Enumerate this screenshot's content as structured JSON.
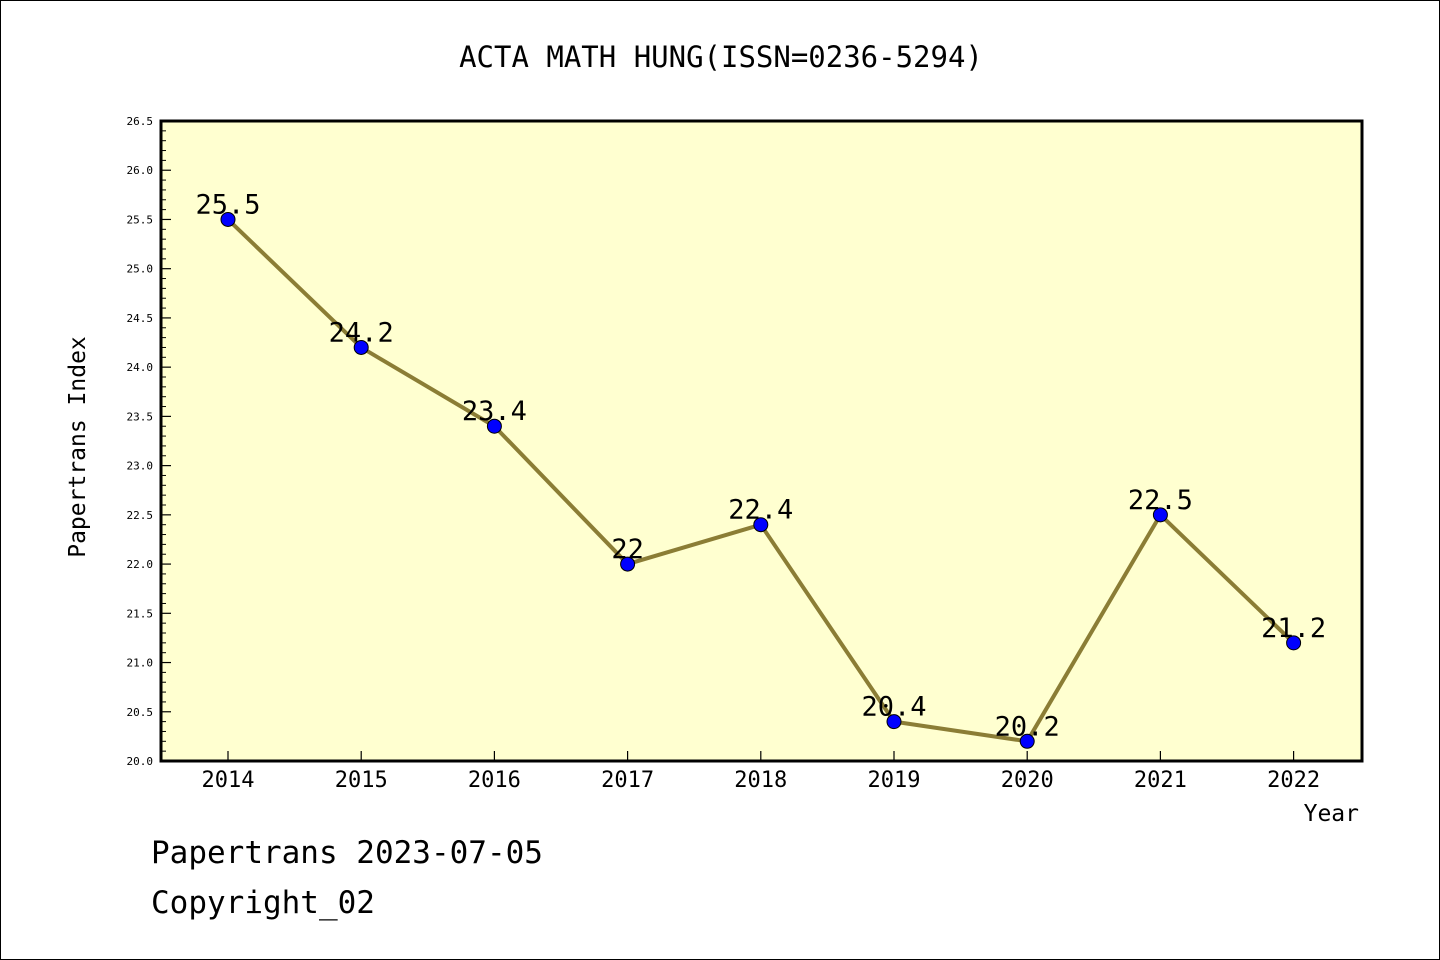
{
  "chart_data": {
    "type": "line",
    "title": "ACTA MATH HUNG(ISSN=0236-5294)",
    "xlabel": "Year",
    "ylabel": "Papertrans Index",
    "categories": [
      "2014",
      "2015",
      "2016",
      "2017",
      "2018",
      "2019",
      "2020",
      "2021",
      "2022"
    ],
    "values": [
      25.5,
      24.2,
      23.4,
      22,
      22.4,
      20.4,
      20.2,
      22.5,
      21.2
    ],
    "data_labels": [
      "25.5",
      "24.2",
      "23.4",
      "22",
      "22.4",
      "20.4",
      "20.2",
      "22.5",
      "21.2"
    ],
    "ylim": [
      20.0,
      26.5
    ],
    "yticks": [
      "20.0",
      "20.5",
      "21.0",
      "21.5",
      "22.0",
      "22.5",
      "23.0",
      "23.5",
      "24.0",
      "24.5",
      "25.0",
      "25.5",
      "26.0",
      "26.5"
    ],
    "grid": false,
    "legend": "none",
    "colors": {
      "plot_background": "#ffffd0",
      "line": "#8b7d35",
      "marker": "#0000ff"
    }
  },
  "footer": {
    "line1": "Papertrans 2023-07-05",
    "line2": "Copyright_02"
  }
}
